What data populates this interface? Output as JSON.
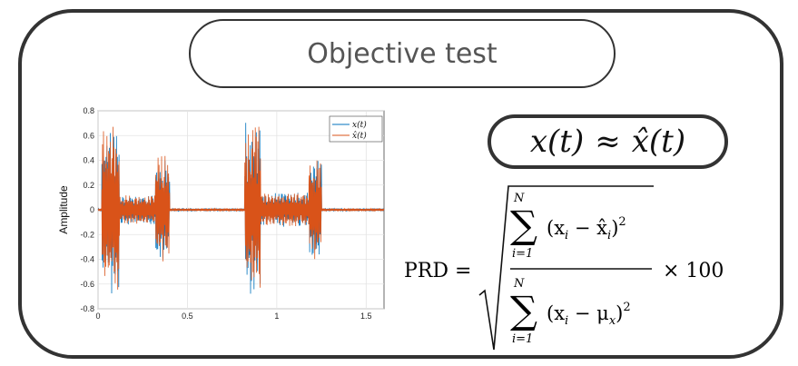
{
  "title": "Objective test",
  "approx_formula": {
    "lhs": "x(t)",
    "op": "≈",
    "rhs_hat": "x̂",
    "rhs_arg": "(t)"
  },
  "prd_formula": {
    "lhs": "PRD =",
    "upper_limit": "N",
    "lower_limit": "i=1",
    "sum_symbol": "∑",
    "numerator_term": "(x",
    "numerator_sub": "i",
    "numerator_minus": " − x̂",
    "numerator_sub2": "i",
    "numerator_close": ")",
    "exponent": "2",
    "denominator_term": "(x",
    "denominator_sub": "i",
    "denominator_minus": " − μ",
    "denominator_sub2": "x",
    "denominator_close": ")",
    "multiplier": "× 100"
  },
  "chart_data": {
    "type": "line",
    "ylabel": "Amplitude",
    "xlim": [
      0,
      1.6
    ],
    "ylim": [
      -0.8,
      0.8
    ],
    "x_ticks": [
      "0",
      "0.5",
      "1",
      "1.5"
    ],
    "y_ticks": [
      "-0.8",
      "-0.6",
      "-0.4",
      "-0.2",
      "0",
      "0.2",
      "0.4",
      "0.6",
      "0.8"
    ],
    "grid": true,
    "legend_position": "top-right",
    "series": [
      {
        "name": "x(t)",
        "color": "#0072BD"
      },
      {
        "name": "x̂(t)",
        "color": "#D95319"
      }
    ],
    "bursts": [
      {
        "start": 0.02,
        "end": 0.12,
        "amp": 0.7
      },
      {
        "start": 0.12,
        "end": 0.32,
        "amp": 0.12
      },
      {
        "start": 0.32,
        "end": 0.4,
        "amp": 0.45
      },
      {
        "start": 0.82,
        "end": 0.91,
        "amp": 0.72
      },
      {
        "start": 0.91,
        "end": 1.18,
        "amp": 0.14
      },
      {
        "start": 1.18,
        "end": 1.25,
        "amp": 0.44
      }
    ],
    "noise_amp": 0.012
  }
}
